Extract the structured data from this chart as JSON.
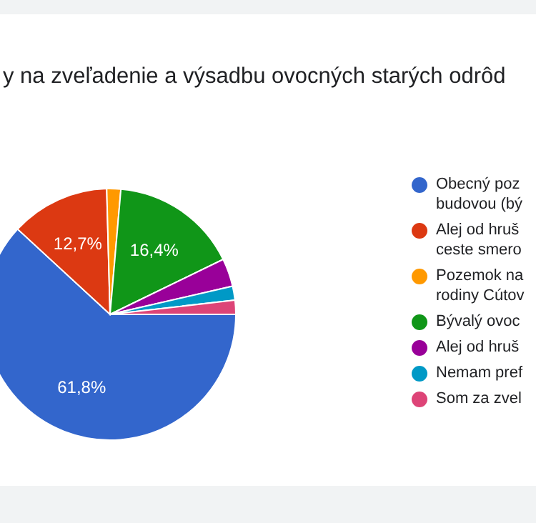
{
  "chart_data": {
    "type": "pie",
    "title": "y na zveľadenie a výsadbu ovocných starých odrôd",
    "categories": [
      "Obecný poz\nbudovou (bý",
      "Alej od hruš\nceste smero",
      "Pozemok na\nrodiny Cútov",
      "Bývalý ovoc",
      "Alej od hruš",
      "Nemam pref",
      "Som za zvel"
    ],
    "values": [
      61.8,
      12.7,
      1.8,
      16.4,
      3.6,
      1.8,
      1.8
    ],
    "colors": [
      "#3366cc",
      "#dc3912",
      "#ff9900",
      "#109618",
      "#990099",
      "#0099c6",
      "#dd4477"
    ],
    "value_labels": [
      "61,8%",
      "12,7%",
      null,
      "16,4%",
      null,
      null,
      null
    ],
    "legend": "right"
  }
}
